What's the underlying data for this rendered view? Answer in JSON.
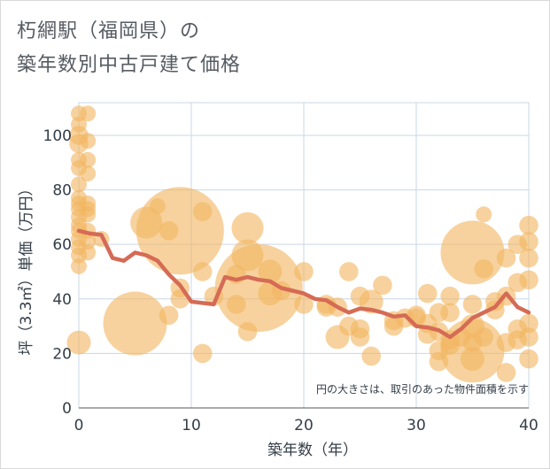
{
  "title_line1": "朽網駅（福岡県）の",
  "title_line2": "築年数別中古戸建て価格",
  "colors": {
    "bubble": "#f2b662",
    "line": "#d56b55",
    "grid": "#c9d7e6",
    "axis": "#333d47"
  },
  "chart_data": {
    "type": "scatter",
    "xlabel": "築年数（年）",
    "ylabel": "坪（3.3㎡）単価（万円）",
    "xlim": [
      0,
      40
    ],
    "ylim": [
      0,
      112
    ],
    "xticks": [
      0,
      10,
      20,
      30,
      40
    ],
    "yticks": [
      0,
      20,
      40,
      60,
      80,
      100
    ],
    "note": "円の大きさは、取引のあった物件面積を示す",
    "points": [
      {
        "x": 0,
        "y": 108,
        "s": 1
      },
      {
        "x": 0,
        "y": 104,
        "s": 1
      },
      {
        "x": 0,
        "y": 100,
        "s": 1.2
      },
      {
        "x": 0,
        "y": 97,
        "s": 1.2
      },
      {
        "x": 0,
        "y": 91,
        "s": 1
      },
      {
        "x": 0,
        "y": 88,
        "s": 1
      },
      {
        "x": 0,
        "y": 82,
        "s": 1
      },
      {
        "x": 0,
        "y": 77,
        "s": 1
      },
      {
        "x": 0,
        "y": 75,
        "s": 1
      },
      {
        "x": 0,
        "y": 73,
        "s": 1
      },
      {
        "x": 0,
        "y": 70,
        "s": 1
      },
      {
        "x": 0,
        "y": 67,
        "s": 1
      },
      {
        "x": 0,
        "y": 65,
        "s": 1
      },
      {
        "x": 0,
        "y": 62,
        "s": 1
      },
      {
        "x": 0,
        "y": 59,
        "s": 1
      },
      {
        "x": 0,
        "y": 56,
        "s": 1
      },
      {
        "x": 0,
        "y": 52,
        "s": 1
      },
      {
        "x": 0,
        "y": 24,
        "s": 1.5
      },
      {
        "x": 0.8,
        "y": 108,
        "s": 1
      },
      {
        "x": 0.8,
        "y": 98,
        "s": 1
      },
      {
        "x": 0.8,
        "y": 91,
        "s": 1
      },
      {
        "x": 0.8,
        "y": 86,
        "s": 1
      },
      {
        "x": 0.8,
        "y": 75,
        "s": 1
      },
      {
        "x": 0.8,
        "y": 73,
        "s": 1
      },
      {
        "x": 0.8,
        "y": 71,
        "s": 1
      },
      {
        "x": 0.8,
        "y": 65,
        "s": 1
      },
      {
        "x": 0.8,
        "y": 61,
        "s": 1
      },
      {
        "x": 0.8,
        "y": 57,
        "s": 1
      },
      {
        "x": 2,
        "y": 62,
        "s": 1
      },
      {
        "x": 5,
        "y": 31,
        "s": 4
      },
      {
        "x": 6,
        "y": 68,
        "s": 2
      },
      {
        "x": 7,
        "y": 74,
        "s": 1
      },
      {
        "x": 8,
        "y": 65,
        "s": 1.2
      },
      {
        "x": 8,
        "y": 34,
        "s": 1.2
      },
      {
        "x": 9,
        "y": 65,
        "s": 5.5
      },
      {
        "x": 9,
        "y": 44,
        "s": 1.2
      },
      {
        "x": 9,
        "y": 40,
        "s": 1.2
      },
      {
        "x": 11,
        "y": 72,
        "s": 1.2
      },
      {
        "x": 11,
        "y": 50,
        "s": 1.2
      },
      {
        "x": 11,
        "y": 20,
        "s": 1.2
      },
      {
        "x": 12,
        "y": 41,
        "s": 1.2
      },
      {
        "x": 14,
        "y": 49,
        "s": 1.2
      },
      {
        "x": 14,
        "y": 38,
        "s": 1.2
      },
      {
        "x": 15,
        "y": 66,
        "s": 2
      },
      {
        "x": 15,
        "y": 56,
        "s": 2
      },
      {
        "x": 15,
        "y": 28,
        "s": 1.2
      },
      {
        "x": 16,
        "y": 44,
        "s": 5.5
      },
      {
        "x": 17,
        "y": 50,
        "s": 1.5
      },
      {
        "x": 17,
        "y": 42,
        "s": 1.5
      },
      {
        "x": 18,
        "y": 43,
        "s": 1.2
      },
      {
        "x": 20,
        "y": 50,
        "s": 1.2
      },
      {
        "x": 20,
        "y": 38,
        "s": 1.2
      },
      {
        "x": 22,
        "y": 38,
        "s": 1.2
      },
      {
        "x": 22,
        "y": 37,
        "s": 1.2
      },
      {
        "x": 23,
        "y": 37,
        "s": 1.2
      },
      {
        "x": 23,
        "y": 26,
        "s": 1.5
      },
      {
        "x": 24,
        "y": 50,
        "s": 1.2
      },
      {
        "x": 24,
        "y": 30,
        "s": 1.2
      },
      {
        "x": 25,
        "y": 41,
        "s": 1.2
      },
      {
        "x": 25,
        "y": 29,
        "s": 1.2
      },
      {
        "x": 25,
        "y": 26,
        "s": 1.2
      },
      {
        "x": 26,
        "y": 39,
        "s": 1.5
      },
      {
        "x": 26,
        "y": 19,
        "s": 1.2
      },
      {
        "x": 27,
        "y": 45,
        "s": 1.2
      },
      {
        "x": 28,
        "y": 32,
        "s": 1.2
      },
      {
        "x": 28,
        "y": 30,
        "s": 1.2
      },
      {
        "x": 29,
        "y": 33,
        "s": 1.2
      },
      {
        "x": 30,
        "y": 34,
        "s": 1.2
      },
      {
        "x": 30,
        "y": 33,
        "s": 1.2
      },
      {
        "x": 31,
        "y": 42,
        "s": 1.2
      },
      {
        "x": 31,
        "y": 31,
        "s": 1.2
      },
      {
        "x": 31,
        "y": 27,
        "s": 1.2
      },
      {
        "x": 32,
        "y": 35,
        "s": 1.2
      },
      {
        "x": 32,
        "y": 28,
        "s": 1.2
      },
      {
        "x": 32,
        "y": 21,
        "s": 1.2
      },
      {
        "x": 32,
        "y": 17,
        "s": 1.2
      },
      {
        "x": 33,
        "y": 41,
        "s": 1.2
      },
      {
        "x": 33,
        "y": 35,
        "s": 1.2
      },
      {
        "x": 33,
        "y": 25,
        "s": 1.2
      },
      {
        "x": 33,
        "y": 23,
        "s": 1.2
      },
      {
        "x": 34,
        "y": 26,
        "s": 1.2
      },
      {
        "x": 35,
        "y": 57,
        "s": 4
      },
      {
        "x": 35,
        "y": 21,
        "s": 4
      },
      {
        "x": 35,
        "y": 38,
        "s": 1.2
      },
      {
        "x": 35,
        "y": 30,
        "s": 1.5
      },
      {
        "x": 35,
        "y": 24,
        "s": 1.2
      },
      {
        "x": 35,
        "y": 18,
        "s": 1.5
      },
      {
        "x": 36,
        "y": 71,
        "s": 1
      },
      {
        "x": 36,
        "y": 51,
        "s": 1.2
      },
      {
        "x": 36,
        "y": 26,
        "s": 1.2
      },
      {
        "x": 37,
        "y": 39,
        "s": 1.2
      },
      {
        "x": 37,
        "y": 36,
        "s": 1.2
      },
      {
        "x": 38,
        "y": 55,
        "s": 1.2
      },
      {
        "x": 38,
        "y": 41,
        "s": 1.2
      },
      {
        "x": 38,
        "y": 24,
        "s": 1.2
      },
      {
        "x": 38,
        "y": 13,
        "s": 1.2
      },
      {
        "x": 39,
        "y": 60,
        "s": 1.2
      },
      {
        "x": 39,
        "y": 46,
        "s": 1.2
      },
      {
        "x": 39,
        "y": 29,
        "s": 1.2
      },
      {
        "x": 39,
        "y": 25,
        "s": 1.2
      },
      {
        "x": 40,
        "y": 67,
        "s": 1.2
      },
      {
        "x": 40,
        "y": 61,
        "s": 1.2
      },
      {
        "x": 40,
        "y": 55,
        "s": 1.2
      },
      {
        "x": 40,
        "y": 47,
        "s": 1.2
      },
      {
        "x": 40,
        "y": 31,
        "s": 1.2
      },
      {
        "x": 40,
        "y": 26,
        "s": 1.2
      },
      {
        "x": 40,
        "y": 18,
        "s": 1.2
      }
    ],
    "line": {
      "x": [
        0,
        1,
        2,
        3,
        4,
        5,
        6,
        7,
        8,
        9,
        10,
        11,
        12,
        13,
        14,
        15,
        16,
        17,
        18,
        19,
        20,
        21,
        22,
        23,
        24,
        25,
        26,
        27,
        28,
        29,
        30,
        31,
        32,
        33,
        34,
        35,
        36,
        37,
        38,
        39,
        40
      ],
      "y": [
        65,
        64,
        63.5,
        55,
        54,
        57,
        56,
        54,
        49,
        45,
        39,
        38.5,
        38,
        48,
        47,
        48,
        47,
        46.5,
        44,
        43,
        42,
        40,
        39.5,
        37,
        35,
        36.5,
        36,
        35,
        33.5,
        34,
        30,
        29.5,
        28.5,
        26,
        29,
        33,
        35,
        37,
        42,
        37,
        35
      ]
    }
  }
}
